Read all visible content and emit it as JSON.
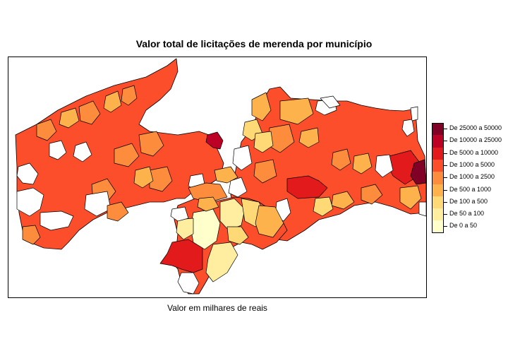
{
  "title": "Valor total de licitações de merenda por município",
  "xlabel": "Valor em milhares de reais",
  "legend": {
    "classes": [
      {
        "label": "De 25000 a 50000",
        "color": "#800026"
      },
      {
        "label": "De 10000 a 25000",
        "color": "#BD0026"
      },
      {
        "label": "De 5000 a 10000",
        "color": "#E31A1C"
      },
      {
        "label": "De 1000 a 5000",
        "color": "#FC4E2A"
      },
      {
        "label": "De 1000 a 2500",
        "color": "#FD8D3C"
      },
      {
        "label": "De 500 a 1000",
        "color": "#FEB24C"
      },
      {
        "label": "De 100 a 500",
        "color": "#FED976"
      },
      {
        "label": "De 50 a 100",
        "color": "#FFEDA0"
      },
      {
        "label": "De 0 a 50",
        "color": "#FFFFCC"
      }
    ]
  },
  "colors": {
    "no_data": "#ffffff",
    "border": "#000000",
    "background": "#ffffff"
  }
}
